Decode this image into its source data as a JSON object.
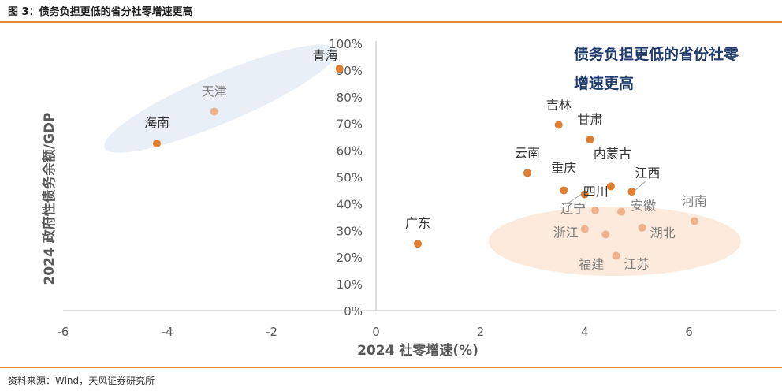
{
  "figure": {
    "title": "图 3：债务负担更低的省分社零增速更高",
    "source": "资料来源：Wind，天风证券研究所"
  },
  "colors": {
    "accent": "#e8893a",
    "point_dark": "#e07d2f",
    "point_light": "#efb28c",
    "label_dark": "#333333",
    "label_light": "#7f7f7f",
    "ellipse_blue": "#dbe6f3",
    "ellipse_orange": "#fbe5d3",
    "annotation": "#1f3a6b"
  },
  "chart_data": {
    "type": "scatter",
    "title": "",
    "xlabel": "2024 社零增速(%)",
    "ylabel": "2024 政府性债务余额/GDP",
    "xlim": [
      -6,
      8
    ],
    "ylim": [
      0,
      100
    ],
    "x_ticks": [
      -6,
      -4,
      -2,
      0,
      2,
      4,
      6
    ],
    "y_ticks": [
      0,
      10,
      20,
      30,
      40,
      50,
      60,
      70,
      80,
      90,
      100
    ],
    "y_tick_suffix": "%",
    "annotation_lines": [
      "债务负担更低的省份社零",
      "增速更高"
    ],
    "points": [
      {
        "name": "青海",
        "x": -0.7,
        "y": 90.5,
        "tone": "dark"
      },
      {
        "name": "天津",
        "x": -3.1,
        "y": 74.5,
        "tone": "light"
      },
      {
        "name": "海南",
        "x": -4.2,
        "y": 62.5,
        "tone": "dark"
      },
      {
        "name": "吉林",
        "x": 3.5,
        "y": 69.5,
        "tone": "dark"
      },
      {
        "name": "甘肃",
        "x": 4.1,
        "y": 64.0,
        "tone": "dark"
      },
      {
        "name": "云南",
        "x": 2.9,
        "y": 51.5,
        "tone": "dark"
      },
      {
        "name": "内蒙古",
        "x": 4.5,
        "y": 46.5,
        "tone": "dark"
      },
      {
        "name": "重庆",
        "x": 3.6,
        "y": 45.0,
        "tone": "dark"
      },
      {
        "name": "四川",
        "x": 4.0,
        "y": 43.5,
        "tone": "dark"
      },
      {
        "name": "江西",
        "x": 4.9,
        "y": 44.5,
        "tone": "dark"
      },
      {
        "name": "河南",
        "x": 6.1,
        "y": 33.5,
        "tone": "light"
      },
      {
        "name": "辽宁",
        "x": 4.2,
        "y": 37.5,
        "tone": "light"
      },
      {
        "name": "安徽",
        "x": 4.7,
        "y": 37.0,
        "tone": "light"
      },
      {
        "name": "浙江",
        "x": 4.0,
        "y": 30.5,
        "tone": "light"
      },
      {
        "name": "湖北",
        "x": 5.1,
        "y": 31.0,
        "tone": "light"
      },
      {
        "name": "福建",
        "x": 4.4,
        "y": 28.5,
        "tone": "light"
      },
      {
        "name": "江苏",
        "x": 4.6,
        "y": 20.5,
        "tone": "light"
      },
      {
        "name": "广东",
        "x": 0.8,
        "y": 25.0,
        "tone": "dark"
      }
    ]
  }
}
